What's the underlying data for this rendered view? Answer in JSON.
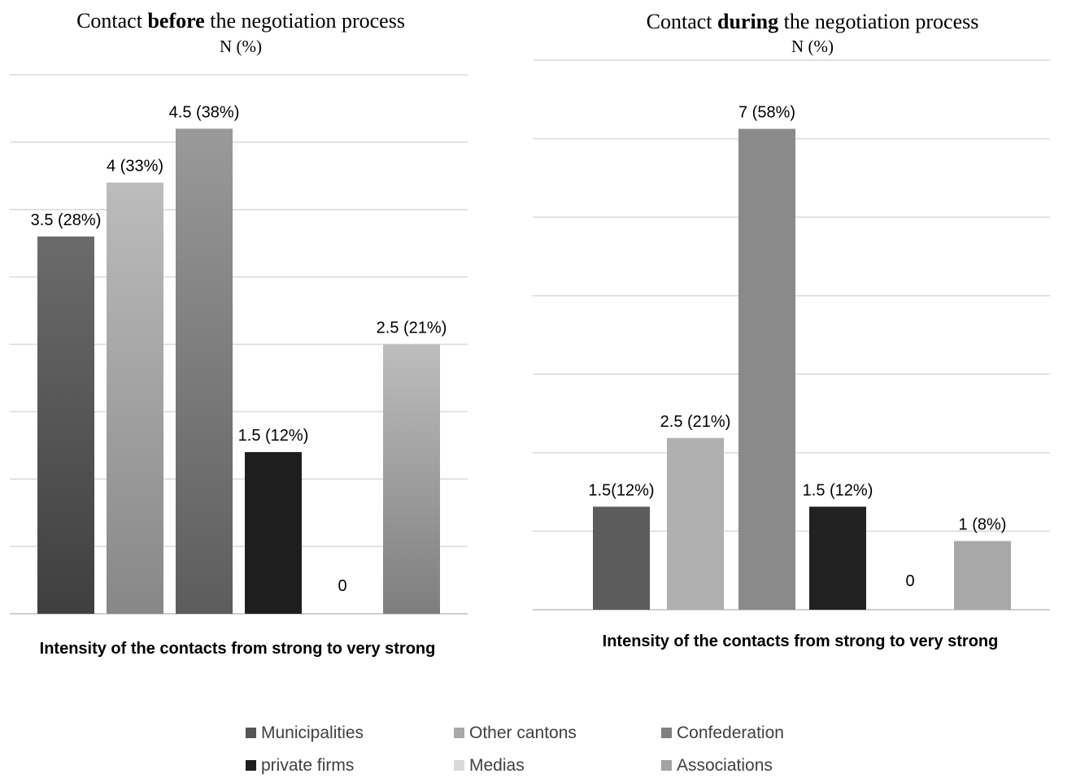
{
  "legend": [
    {
      "label": "Municipalities",
      "color": "#555555"
    },
    {
      "label": "Other cantons",
      "color": "#a9a9a9"
    },
    {
      "label": "Confederation",
      "color": "#808080"
    },
    {
      "label": "private firms",
      "color": "#1f1f1f"
    },
    {
      "label": "Medias",
      "color": "#d9d9d9"
    },
    {
      "label": "Associations",
      "color": "#a3a3a3"
    }
  ],
  "chart_data": [
    {
      "type": "bar",
      "title_prefix": "Contact ",
      "title_bold": "before",
      "title_suffix": " the negotiation process",
      "subtitle": "N (%)",
      "xlabel": "Intensity of the contacts from strong to very strong",
      "ylabel": "",
      "categories": [
        "Municipalities",
        "Other cantons",
        "Confederation",
        "private firms",
        "Medias",
        "Associations"
      ],
      "values": [
        3.5,
        4,
        4.5,
        1.5,
        0,
        2.5
      ],
      "data_labels": [
        "3.5 (28%)",
        "4 (33%)",
        "4.5 (38%)",
        "1.5 (12%)",
        "0",
        "2.5 (21%)"
      ],
      "ylim": [
        0,
        5.0
      ],
      "grid": true,
      "colors": [
        [
          "#6b6b6b",
          "#3f3f3f"
        ],
        [
          "#bcbcbc",
          "#878787"
        ],
        [
          "#9a9a9a",
          "#5c5c5c"
        ],
        [
          "#1e1e1e",
          "#1e1e1e"
        ],
        [
          "#d9d9d9",
          "#d9d9d9"
        ],
        [
          "#bdbdbd",
          "#7e7e7e"
        ]
      ]
    },
    {
      "type": "bar",
      "title_prefix": "Contact ",
      "title_bold": "during",
      "title_suffix": " the negotiation process",
      "subtitle": "N (%)",
      "xlabel": "Intensity of the contacts from strong to very strong",
      "ylabel": "",
      "categories": [
        "Municipalities",
        "Other cantons",
        "Confederation",
        "private firms",
        "Medias",
        "Associations"
      ],
      "values": [
        1.5,
        2.5,
        7,
        1.5,
        0,
        1
      ],
      "data_labels": [
        "1.5(12%)",
        "2.5 (21%)",
        "7 (58%)",
        "1.5 (12%)",
        "0",
        "1 (8%)"
      ],
      "ylim": [
        0,
        8
      ],
      "grid": true,
      "colors": [
        [
          "#5c5c5c",
          "#5c5c5c"
        ],
        [
          "#b0b0b0",
          "#b0b0b0"
        ],
        [
          "#8a8a8a",
          "#8a8a8a"
        ],
        [
          "#222222",
          "#222222"
        ],
        [
          "#d9d9d9",
          "#d9d9d9"
        ],
        [
          "#a8a8a8",
          "#a8a8a8"
        ]
      ]
    }
  ]
}
